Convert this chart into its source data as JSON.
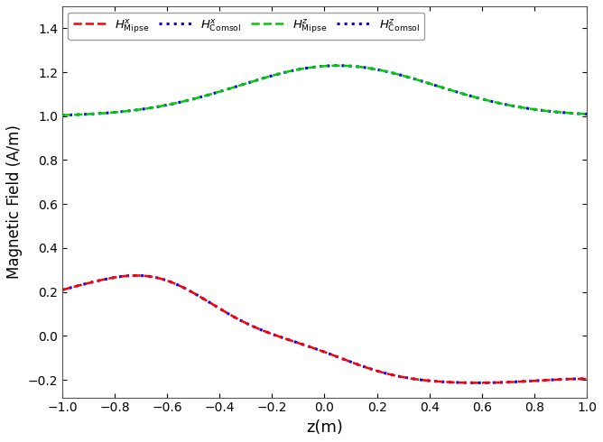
{
  "title": "",
  "xlabel": "z(m)",
  "ylabel": "Magnetic Field (A/m)",
  "xlim": [
    -1.0,
    1.0
  ],
  "ylim": [
    -0.28,
    1.5
  ],
  "yticks": [
    -0.2,
    0.0,
    0.2,
    0.4,
    0.6,
    0.8,
    1.0,
    1.2,
    1.4
  ],
  "xticks": [
    -1.0,
    -0.8,
    -0.6,
    -0.4,
    -0.2,
    0.0,
    0.2,
    0.4,
    0.6,
    0.8,
    1.0
  ],
  "color_Hx_mipse": "#FF0000",
  "color_Hx_comsol": "#0000FF",
  "color_Hz_mipse": "#00CC00",
  "color_Hz_comsol": "#0000FF",
  "figsize": [
    6.68,
    4.9
  ],
  "dpi": 100
}
